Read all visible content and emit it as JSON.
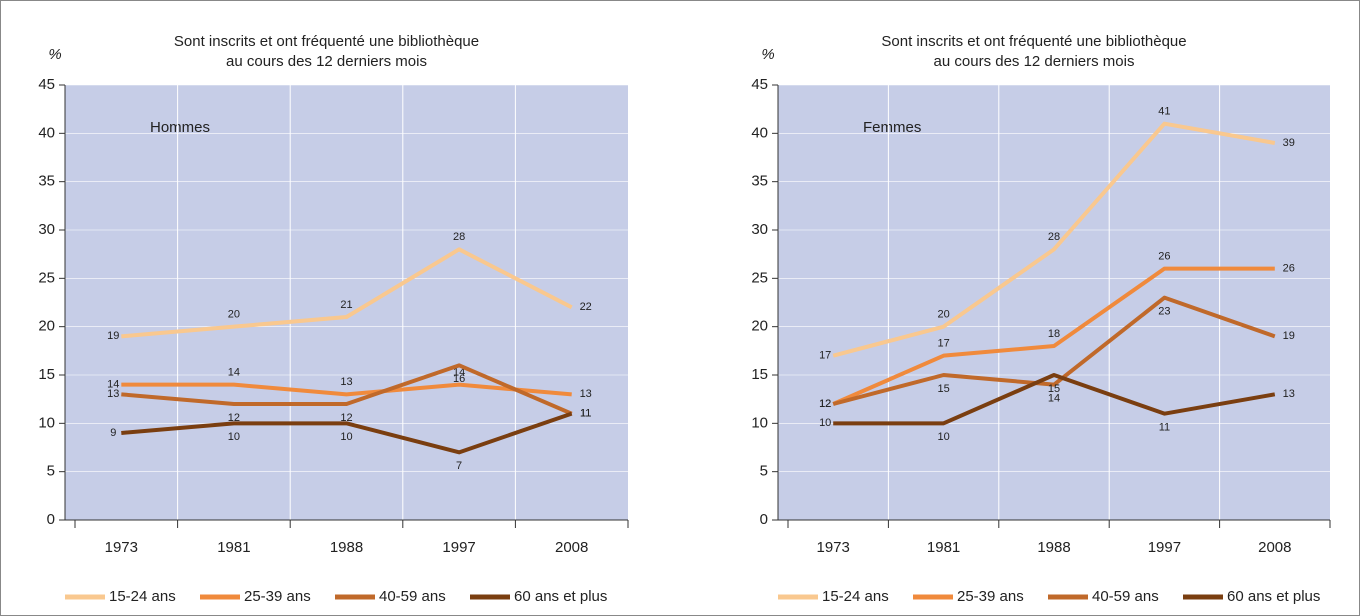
{
  "chart_data": [
    {
      "type": "line",
      "title": [
        "Sont inscrits et ont fréquenté une bibliothèque",
        "au cours des 12 derniers mois"
      ],
      "y_label": "%",
      "annotation": "Hommes",
      "categories": [
        "1973",
        "1981",
        "1988",
        "1997",
        "2008"
      ],
      "series": [
        {
          "name": "15-24 ans",
          "color": "#f9c88f",
          "values": [
            19,
            20,
            21,
            28,
            22
          ]
        },
        {
          "name": "25-39 ans",
          "color": "#f08a3c",
          "values": [
            14,
            14,
            13,
            14,
            13
          ]
        },
        {
          "name": "40-59 ans",
          "color": "#c0692a",
          "values": [
            13,
            12,
            12,
            16,
            11
          ]
        },
        {
          "name": "60 ans et plus",
          "color": "#7a3e10",
          "values": [
            9,
            10,
            10,
            7,
            11
          ]
        }
      ],
      "ylim": [
        0,
        45
      ],
      "yticks": [
        0,
        5,
        10,
        15,
        20,
        25,
        30,
        35,
        40,
        45
      ],
      "grid": true
    },
    {
      "type": "line",
      "title": [
        "Sont inscrits et ont fréquenté une bibliothèque",
        "au cours des 12 derniers mois"
      ],
      "y_label": "%",
      "annotation": "Femmes",
      "categories": [
        "1973",
        "1981",
        "1988",
        "1997",
        "2008"
      ],
      "series": [
        {
          "name": "15-24 ans",
          "color": "#f9c88f",
          "values": [
            17,
            20,
            28,
            41,
            39
          ]
        },
        {
          "name": "25-39 ans",
          "color": "#f08a3c",
          "values": [
            12,
            17,
            18,
            26,
            26
          ]
        },
        {
          "name": "40-59 ans",
          "color": "#c0692a",
          "values": [
            12,
            15,
            14,
            23,
            19
          ]
        },
        {
          "name": "60 ans et plus",
          "color": "#7a3e10",
          "values": [
            10,
            10,
            15,
            11,
            13
          ]
        }
      ],
      "ylim": [
        0,
        45
      ],
      "yticks": [
        0,
        5,
        10,
        15,
        20,
        25,
        30,
        35,
        40,
        45
      ],
      "grid": true
    }
  ]
}
